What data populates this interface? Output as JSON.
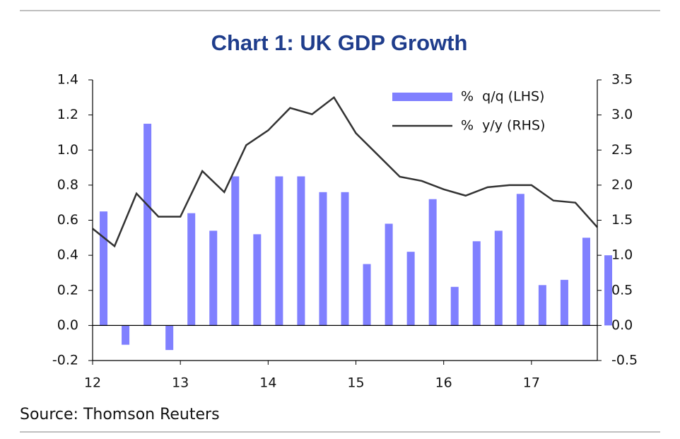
{
  "chart_data": {
    "type": "bar-line",
    "title": "Chart 1: UK GDP Growth",
    "source": "Source: Thomson Reuters",
    "x": [
      12,
      12.25,
      12.5,
      12.75,
      13,
      13.25,
      13.5,
      13.75,
      14,
      14.25,
      14.5,
      14.75,
      15,
      15.25,
      15.5,
      15.75,
      16,
      16.25,
      16.5,
      16.75,
      17,
      17.25,
      17.5,
      17.75
    ],
    "xlim": [
      12,
      17.75
    ],
    "xticks": [
      12,
      13,
      14,
      15,
      16,
      17
    ],
    "ylim": [
      -0.2,
      1.4
    ],
    "yticks": [
      -0.2,
      {
        "value": 0,
        "label": "0.0"
      },
      0.2,
      0.4,
      0.6,
      0.8,
      {
        "value": 1,
        "label": "1.0"
      },
      1.2,
      1.4
    ],
    "y2lim": [
      -0.5,
      3.5
    ],
    "y2ticks": [
      -0.5,
      {
        "value": 0,
        "label": "0.0"
      },
      0.5,
      {
        "value": 1,
        "label": "1.0"
      },
      1.5,
      {
        "value": 2,
        "label": "2.0"
      },
      2.5,
      {
        "value": 3,
        "label": "3.0"
      },
      3.5
    ],
    "legend": "top-right",
    "series": [
      {
        "name": "%  q/q (LHS)",
        "type": "bar",
        "color": "#8080ff",
        "values": [
          0.65,
          -0.11,
          1.15,
          -0.14,
          0.64,
          0.54,
          0.85,
          0.52,
          0.85,
          0.85,
          0.76,
          0.76,
          0.35,
          0.58,
          0.42,
          0.72,
          0.22,
          0.48,
          0.54,
          0.75,
          0.23,
          0.26,
          0.5,
          0.4
        ]
      },
      {
        "name": "%  y/y (RHS)",
        "type": "line",
        "axis": "y2",
        "color": "#333333",
        "values": [
          1.38,
          1.13,
          1.88,
          1.55,
          1.55,
          2.2,
          1.9,
          2.57,
          2.78,
          3.1,
          3.01,
          3.25,
          2.74,
          2.43,
          2.12,
          2.06,
          1.94,
          1.85,
          1.97,
          2.0,
          2.0,
          1.78,
          1.75,
          1.4
        ]
      }
    ]
  }
}
